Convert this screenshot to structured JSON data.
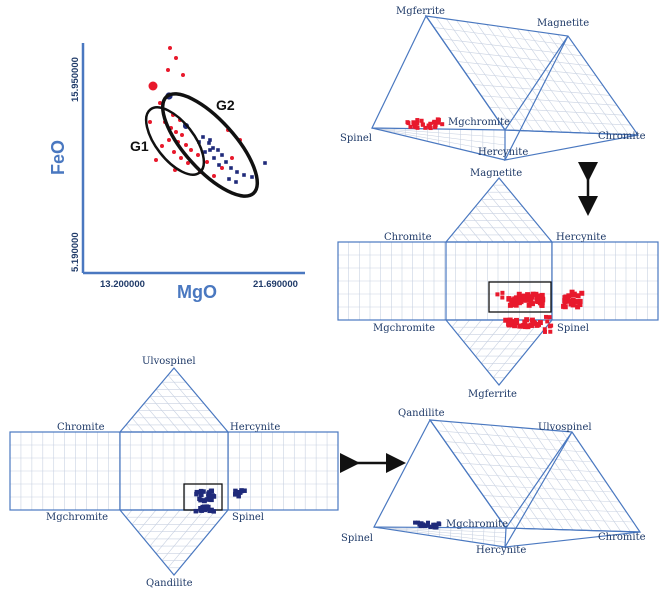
{
  "scatter": {
    "x_label": "MgO",
    "y_label": "FeO",
    "x_ticks": [
      "13.200000",
      "21.690000"
    ],
    "y_ticks": [
      "5.190000",
      "15.950000"
    ],
    "groups": [
      "G1",
      "G2"
    ]
  },
  "prism_red": {
    "labels": {
      "top_left": "Mgferrite",
      "top_right": "Magnetite",
      "bottom_left": "Spinel",
      "mid": "Mgchromite",
      "bottom_mid": "Hercynite",
      "right": "Chromite"
    }
  },
  "net_red": {
    "labels": {
      "top": "Magnetite",
      "left": "Chromite",
      "right": "Hercynite",
      "bottom_left": "Mgchromite",
      "bottom_right": "Spinel",
      "bottom": "Mgferrite"
    }
  },
  "net_blue": {
    "labels": {
      "top": "Ulvospinel",
      "left": "Chromite",
      "right": "Hercynite",
      "bottom_left": "Mgchromite",
      "bottom_right": "Spinel",
      "bottom": "Qandilite"
    }
  },
  "prism_blue": {
    "labels": {
      "top_left": "Qandilite",
      "top_right": "Ulvospinel",
      "bottom_left": "Spinel",
      "mid": "Mgchromite",
      "bottom_mid": "Hercynite",
      "right": "Chromite"
    }
  },
  "colors": {
    "red": "#e8192c",
    "blue": "#1f2a7a",
    "frame": "#4a78c0"
  }
}
